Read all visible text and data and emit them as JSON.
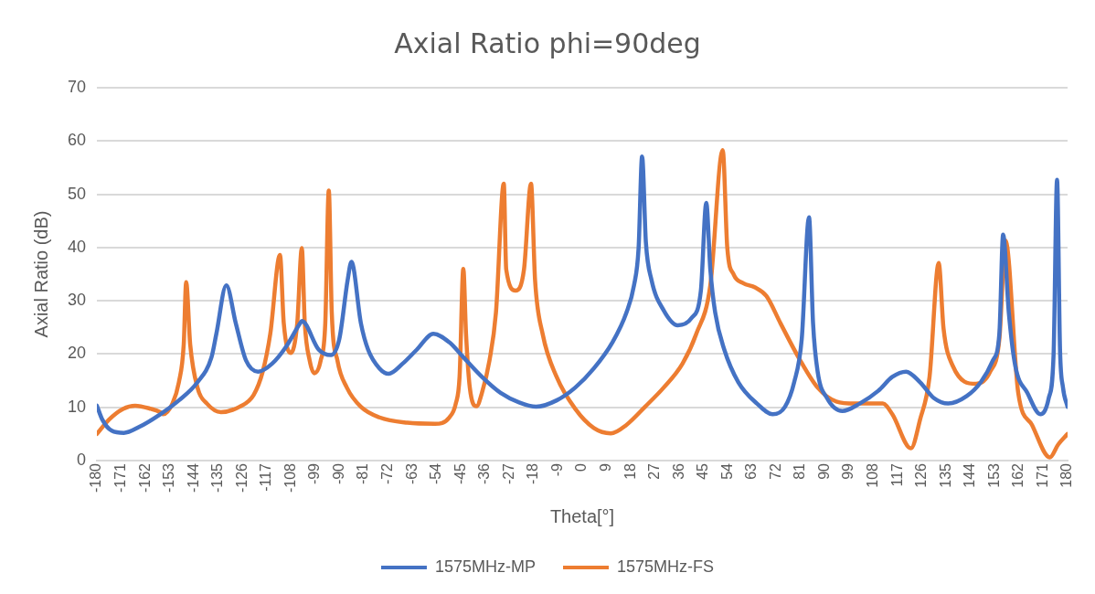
{
  "chart_data": {
    "type": "line",
    "title": "Axial Ratio phi=90deg",
    "xlabel": "Theta[°]",
    "ylabel": "Axial Ratio (dB)",
    "xlim": [
      -180,
      180
    ],
    "xticks": [
      -180,
      -171,
      -162,
      -153,
      -144,
      -135,
      -126,
      -117,
      -108,
      -99,
      -90,
      -81,
      -72,
      -63,
      -54,
      -45,
      -36,
      -27,
      -18,
      -9,
      0,
      9,
      18,
      27,
      36,
      45,
      54,
      63,
      72,
      81,
      90,
      99,
      108,
      117,
      126,
      135,
      144,
      153,
      162,
      171,
      180
    ],
    "ylim": [
      0,
      70
    ],
    "yticks": [
      0,
      10,
      20,
      30,
      40,
      50,
      60,
      70
    ],
    "grid": "y",
    "legend": "bottom",
    "marker": "none",
    "line_style": "solid",
    "series": [
      {
        "name": "1575MHz-MP",
        "color": "#4472c4",
        "x": [
          -180,
          -178,
          -174.5,
          -170,
          -164.4,
          -156.5,
          -149.6,
          -142.7,
          -137.5,
          -135.7,
          -132,
          -128.5,
          -124.7,
          -120.2,
          -115,
          -109.8,
          -104.6,
          -104,
          -97.7,
          -93.2,
          -90.1,
          -87,
          -85.6,
          -82.1,
          -79.4,
          -75.2,
          -71.8,
          -66.6,
          -61.4,
          -55.2,
          -49.3,
          -44.1,
          -37.2,
          -30.3,
          -23.4,
          -17.1,
          -9.5,
          -2.6,
          4.3,
          11.2,
          16.4,
          19.2,
          20.9,
          22.2,
          23.6,
          25.7,
          30.2,
          35.4,
          40.6,
          44,
          46,
          47.5,
          49.3,
          52.7,
          57.9,
          64.8,
          70.6,
          75.2,
          78.6,
          81.4,
          84.1,
          85.6,
          87.3,
          90.8,
          96.5,
          102.9,
          109.8,
          115,
          120.1,
          125.3,
          130.5,
          135.7,
          142.6,
          147.8,
          152.3,
          154.7,
          156.1,
          158.2,
          160.6,
          165.1,
          169.9,
          173,
          174.8,
          176.1,
          177.2,
          178.3,
          180
        ],
        "values": [
          10.3,
          7.7,
          5.6,
          5.2,
          6.3,
          8.7,
          11.3,
          14.7,
          19.4,
          23.8,
          32.9,
          25.8,
          18.8,
          16.7,
          18.2,
          21.4,
          25.8,
          26.2,
          20.8,
          19.8,
          22.8,
          33.9,
          37.3,
          25.8,
          20.8,
          17.3,
          16.3,
          18.2,
          20.8,
          23.8,
          22.2,
          19.4,
          15.7,
          12.7,
          10.9,
          10.1,
          11.3,
          13.7,
          17.3,
          22.2,
          27.8,
          32.9,
          39.9,
          57.1,
          41,
          33.9,
          28.2,
          25.4,
          26.8,
          31.9,
          48.4,
          35.9,
          27.8,
          20.8,
          14.7,
          10.7,
          8.7,
          10.1,
          14.7,
          22.8,
          45.7,
          25.8,
          16.7,
          11.7,
          9.3,
          10.7,
          13.1,
          15.7,
          16.7,
          14.7,
          11.7,
          10.7,
          12.1,
          14.7,
          18.8,
          23.8,
          42.4,
          27.8,
          17.8,
          12.7,
          8.7,
          11.7,
          19.8,
          52.7,
          20.8,
          13.7,
          10.1
        ]
      },
      {
        "name": "1575MHz-FS",
        "color": "#ed7d31",
        "x": [
          -180,
          -175.5,
          -170.3,
          -165.8,
          -159.9,
          -156.5,
          -155.4,
          -152,
          -149.6,
          -147.8,
          -146.9,
          -145.4,
          -142.7,
          -139.2,
          -134,
          -127.1,
          -121.9,
          -118.5,
          -115.7,
          -112.1,
          -110.7,
          -108.1,
          -105.7,
          -104,
          -102.9,
          -101.1,
          -99.4,
          -97,
          -95.3,
          -94,
          -92.9,
          -90.8,
          -87.3,
          -82.1,
          -75.2,
          -64.9,
          -54.6,
          -49.3,
          -46.9,
          -45.5,
          -44.1,
          -43.1,
          -41.7,
          -39.2,
          -37.2,
          -34.4,
          -32,
          -29.1,
          -28.2,
          -24.7,
          -21.6,
          -19,
          -17.5,
          -14.7,
          -9.5,
          -2.6,
          4.3,
          10.6,
          16.4,
          23.3,
          30.2,
          37.2,
          42.3,
          47.5,
          52.1,
          53.8,
          56.2,
          59.7,
          64.1,
          68.3,
          73.5,
          80.4,
          87.3,
          94.2,
          101.1,
          111.5,
          115,
          121.9,
          125.3,
          128.8,
          132.2,
          134,
          137.4,
          146.1,
          151.3,
          154.7,
          157,
          161.7,
          166.8,
          173.4,
          176.5,
          180
        ],
        "values": [
          5,
          7.7,
          9.7,
          10.3,
          9.7,
          9.1,
          8.7,
          10.7,
          14.7,
          21.8,
          33.5,
          21.8,
          13.7,
          10.7,
          9.1,
          10.1,
          12.3,
          16.7,
          23.8,
          38.6,
          25.8,
          20.2,
          25.8,
          39.9,
          25.8,
          18.8,
          16.4,
          18.8,
          25.8,
          50.7,
          27.8,
          18.8,
          13.7,
          10.1,
          8.1,
          7.1,
          6.9,
          8.1,
          10.7,
          15.7,
          36,
          23.8,
          13.7,
          10.2,
          12.7,
          18.8,
          27.8,
          52,
          35.9,
          31.9,
          35.9,
          52,
          33.9,
          23.8,
          15.7,
          9.7,
          6.1,
          5.1,
          6.7,
          10.1,
          13.7,
          18.2,
          23.8,
          32.9,
          58.3,
          39.9,
          34.9,
          33.3,
          32.5,
          30.9,
          25.8,
          19.2,
          13.7,
          11.1,
          10.7,
          10.7,
          8.7,
          2.3,
          7.7,
          15.7,
          37.1,
          24.8,
          17.8,
          14.4,
          16.7,
          22.8,
          41.3,
          12.7,
          6.7,
          0.6,
          3,
          5
        ]
      }
    ]
  }
}
